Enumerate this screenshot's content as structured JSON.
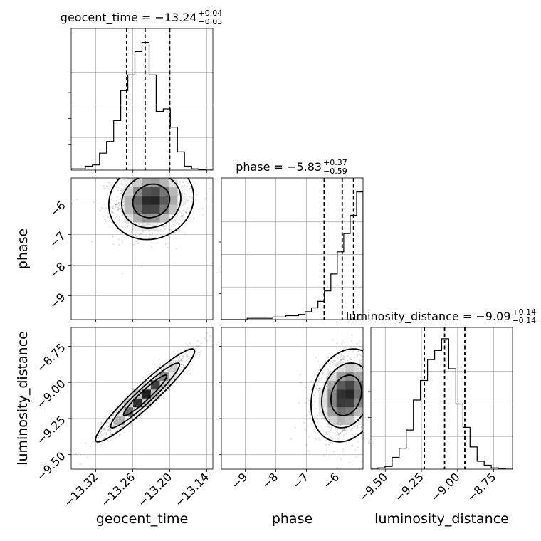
{
  "chart_data": {
    "type": "corner",
    "parameters": [
      "geocent_time",
      "phase",
      "luminosity_distance"
    ],
    "titles": [
      {
        "name": "geocent_time",
        "value": "−13.24",
        "plus": "+0.04",
        "minus": "−0.03"
      },
      {
        "name": "phase",
        "value": "−5.83",
        "plus": "+0.37",
        "minus": "−0.59"
      },
      {
        "name": "luminosity_distance",
        "value": "−9.09",
        "plus": "+0.14",
        "minus": "−0.14"
      }
    ],
    "axis_labels": {
      "x": [
        "geocent_time",
        "phase",
        "luminosity_distance"
      ],
      "y": [
        "phase",
        "luminosity_distance"
      ]
    },
    "ranges": {
      "geocent_time": [
        -13.36,
        -13.13
      ],
      "phase": [
        -9.78,
        -5.15
      ],
      "luminosity_distance": [
        -9.6,
        -8.62
      ]
    },
    "ticks": {
      "geocent_time": {
        "values": [
          -13.32,
          -13.26,
          -13.2,
          -13.14
        ],
        "labels": [
          "−13.32",
          "−13.26",
          "−13.20",
          "−13.14"
        ]
      },
      "phase": {
        "values": [
          -9,
          -8,
          -7,
          -6
        ],
        "labels": [
          "−9",
          "−8",
          "−7",
          "−6"
        ]
      },
      "luminosity_distance": {
        "values": [
          -9.5,
          -9.25,
          -9.0,
          -8.75
        ],
        "labels": [
          "−9.50",
          "−9.25",
          "−9.00",
          "−8.75"
        ]
      }
    },
    "quantiles": {
      "geocent_time": [
        -13.27,
        -13.24,
        -13.2
      ],
      "phase": [
        -6.42,
        -5.83,
        -5.46
      ],
      "luminosity_distance": [
        -9.23,
        -9.09,
        -8.95
      ]
    },
    "histograms": {
      "geocent_time": {
        "edges_range": [
          -13.36,
          -13.13
        ],
        "counts": [
          0.01,
          0.01,
          0.03,
          0.04,
          0.13,
          0.22,
          0.38,
          0.61,
          0.73,
          0.91,
          0.98,
          0.73,
          0.45,
          0.47,
          0.33,
          0.14,
          0.03,
          0.01,
          0.005,
          0.0
        ]
      },
      "phase": {
        "edges_range": [
          -9.78,
          -5.15
        ],
        "counts": [
          0.0,
          0.0,
          0.0,
          0.0,
          0.01,
          0.01,
          0.01,
          0.01,
          0.02,
          0.02,
          0.03,
          0.03,
          0.04,
          0.06,
          0.09,
          0.14,
          0.22,
          0.35,
          0.52,
          0.66,
          0.8,
          0.98
        ]
      },
      "luminosity_distance": {
        "edges_range": [
          -9.6,
          -8.62
        ],
        "counts": [
          0.0,
          0.01,
          0.02,
          0.09,
          0.16,
          0.3,
          0.53,
          0.68,
          0.84,
          0.91,
          1.0,
          0.77,
          0.5,
          0.32,
          0.17,
          0.06,
          0.03,
          0.01,
          0.005,
          0.0
        ]
      }
    },
    "joint": {
      "phase_vs_geocent_time": {
        "corr": 0.1,
        "center": [
          -13.23,
          -5.9
        ],
        "sd": [
          0.03,
          0.55
        ]
      },
      "luminosity_distance_vs_geocent_time": {
        "corr": 0.95,
        "center": [
          -13.24,
          -9.09
        ],
        "sd": [
          0.035,
          0.14
        ]
      },
      "luminosity_distance_vs_phase": {
        "corr": 0.2,
        "center": [
          -5.7,
          -9.09
        ],
        "sd": [
          0.5,
          0.14
        ]
      }
    },
    "grid": true
  }
}
